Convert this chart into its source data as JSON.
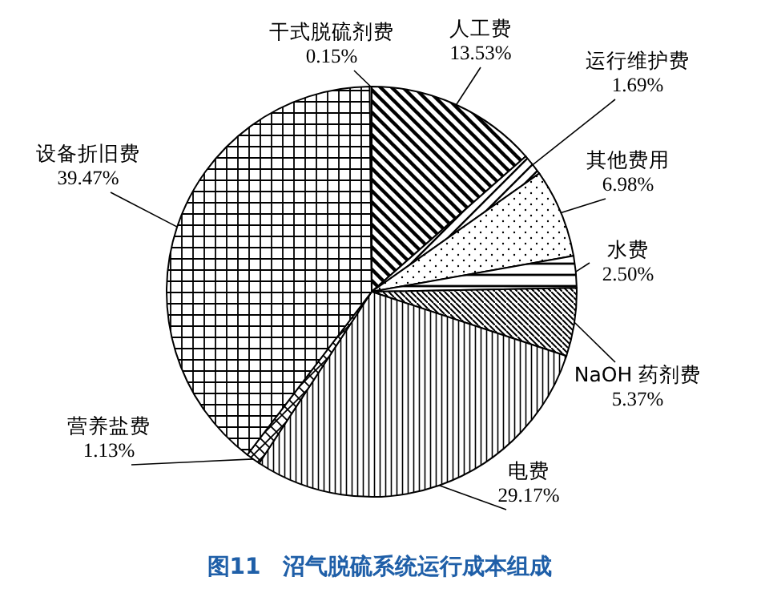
{
  "chart_data": {
    "type": "pie",
    "title": "图11　沼气脱硫系统运行成本组成",
    "categories": [
      "人工费",
      "运行维护费",
      "其他费用",
      "水费",
      "NaOH 药剂费",
      "电费",
      "营养盐费",
      "设备折旧费",
      "干式脱硫剂费"
    ],
    "values": [
      13.53,
      1.69,
      6.98,
      2.5,
      5.37,
      29.17,
      1.13,
      39.47,
      0.15
    ],
    "value_labels": [
      "13.53%",
      "1.69%",
      "6.98%",
      "2.50%",
      "5.37%",
      "29.17%",
      "1.13%",
      "39.47%",
      "0.15%"
    ],
    "colors": [
      "#000000",
      "#000000",
      "#000000",
      "#000000",
      "#000000",
      "#000000",
      "#000000",
      "#000000",
      "#000000"
    ]
  }
}
